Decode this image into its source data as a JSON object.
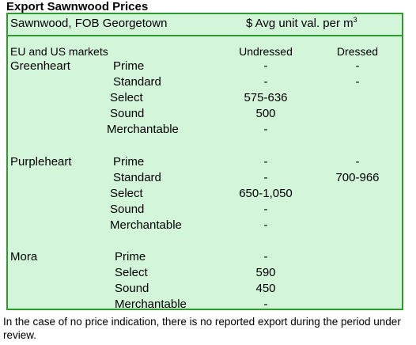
{
  "title": "Export Sawnwood Prices",
  "header": {
    "left": "Sawnwood, FOB Georgetown",
    "right": "$ Avg unit val. per m",
    "right_sup": "3"
  },
  "subheader": {
    "market": "EU and US markets",
    "col1": "Undressed",
    "col2": "Dressed"
  },
  "groups": [
    {
      "species": "Greenheart",
      "rows": [
        {
          "grade": "Prime",
          "undressed": "-",
          "dressed": "-"
        },
        {
          "grade": "Standard",
          "undressed": "-",
          "dressed": "-"
        },
        {
          "grade": "Select",
          "undressed": "575-636",
          "dressed": ""
        },
        {
          "grade": "Sound",
          "undressed": "500",
          "dressed": ""
        },
        {
          "grade": "Merchantable",
          "undressed": "-",
          "dressed": ""
        }
      ]
    },
    {
      "species": "Purpleheart",
      "rows": [
        {
          "grade": "Prime",
          "undressed": "-",
          "dressed": "-"
        },
        {
          "grade": "Standard",
          "undressed": "-",
          "dressed": "700-966"
        },
        {
          "grade": "Select",
          "undressed": "650-1,050",
          "dressed": ""
        },
        {
          "grade": "Sound",
          "undressed": "-",
          "dressed": ""
        },
        {
          "grade": "Merchantable",
          "undressed": "-",
          "dressed": ""
        }
      ]
    },
    {
      "species": "Mora",
      "rows": [
        {
          "grade": "Prime",
          "undressed": "-",
          "dressed": ""
        },
        {
          "grade": "Select",
          "undressed": "590",
          "dressed": ""
        },
        {
          "grade": "Sound",
          "undressed": "450",
          "dressed": ""
        },
        {
          "grade": "Merchantable",
          "undressed": "-",
          "dressed": ""
        }
      ]
    }
  ],
  "note": "In the case of no price indication, there is no reported export during the period under review."
}
